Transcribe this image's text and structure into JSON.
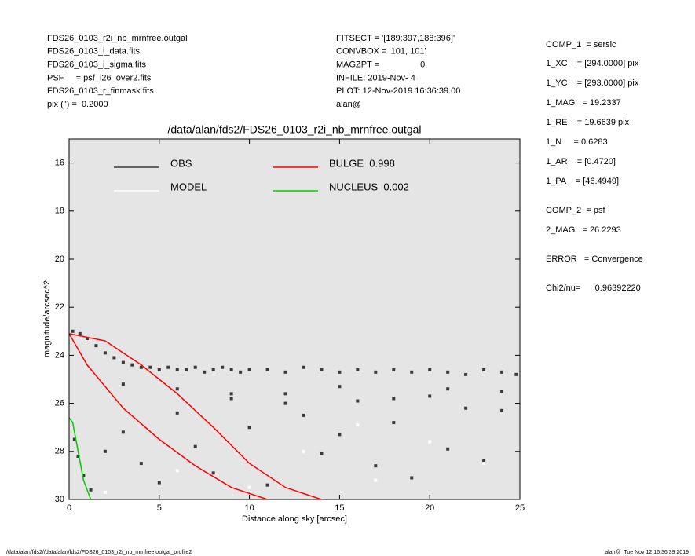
{
  "header": {
    "left": [
      "FDS26_0103_r2i_nb_mrnfree.outgal",
      "FDS26_0103_i_data.fits",
      "FDS26_0103_i_sigma.fits",
      "PSF     = psf_i26_over2.fits",
      "FDS26_0103_r_finmask.fits",
      "pix (\") =  0.2000"
    ],
    "middle": [
      "FITSECT = '[189:397,188:396]'",
      "CONVBOX = '101, 101'",
      "MAGZPT =                 0.",
      "INFILE: 2019-Nov- 4",
      "PLOT: 12-Nov-2019 16:36:39.00",
      "alan@"
    ],
    "right": [
      "COMP_1  = sersic",
      "1_XC    = [294.0000] pix",
      "1_YC    = [293.0000] pix",
      "1_MAG   = 19.2337",
      "1_RE    = 19.6639 pix",
      "1_N     = 0.6283",
      "1_AR    = [0.4720]",
      "1_PA    = [46.4949]",
      "COMP_2  = psf",
      "2_MAG   = 26.2293",
      "ERROR   = Convergence",
      "Chi2/nu=      0.96392220"
    ]
  },
  "footer": {
    "left": "/data/alan/fds2//data/alan/fds2/FDS26_0103_r2i_nb_mrnfree.outgal_profile2",
    "right": "alan@  Tue Nov 12 16:36:39 2019"
  },
  "chart_data": {
    "type": "scatter",
    "title": "/data/alan/fds2/FDS26_0103_r2i_nb_mrnfree.outgal",
    "x_label": "Distance along sky [arcsec]",
    "y_label": "magnitude/arcsec^2",
    "xlim": [
      0,
      25
    ],
    "ylim": [
      30,
      15
    ],
    "xticks": [
      0,
      5,
      10,
      15,
      20,
      25
    ],
    "yticks": [
      16,
      18,
      20,
      22,
      24,
      26,
      28,
      30
    ],
    "series": [
      {
        "name": "OBS",
        "color": "#3a3a3a",
        "mode": "markers",
        "x": [
          0.2,
          0.6,
          1.0,
          1.5,
          2.0,
          2.5,
          3.0,
          3.5,
          4.0,
          4.5,
          5,
          5.5,
          6,
          6.5,
          7,
          7.5,
          8,
          8.5,
          9,
          9.5,
          10,
          11,
          12,
          13,
          14,
          15,
          16,
          17,
          18,
          19,
          20,
          21,
          22,
          23,
          24,
          24.8,
          0.3,
          0.5,
          0.8,
          1.2,
          2,
          3,
          4,
          5,
          6,
          7,
          8,
          9,
          10,
          11,
          12,
          13,
          14,
          15,
          16,
          17,
          18,
          19,
          20,
          21,
          22,
          23,
          24,
          3,
          6,
          9,
          12,
          15,
          18,
          21,
          24
        ],
        "values": [
          23.0,
          23.1,
          23.3,
          23.6,
          23.9,
          24.1,
          24.3,
          24.4,
          24.5,
          24.5,
          24.6,
          24.5,
          24.6,
          24.6,
          24.5,
          24.7,
          24.6,
          24.5,
          24.6,
          24.7,
          24.6,
          24.6,
          24.7,
          24.5,
          24.6,
          24.7,
          24.6,
          24.7,
          24.6,
          24.7,
          24.6,
          24.7,
          24.8,
          24.6,
          24.7,
          24.8,
          27.5,
          28.2,
          29.0,
          29.6,
          28.0,
          27.2,
          28.5,
          29.3,
          26.4,
          27.8,
          28.9,
          25.8,
          27.0,
          29.4,
          25.6,
          26.5,
          28.1,
          27.3,
          25.9,
          28.6,
          26.8,
          29.1,
          25.7,
          27.9,
          26.2,
          28.4,
          25.5,
          25.2,
          25.4,
          25.6,
          26.0,
          25.3,
          25.8,
          25.4,
          26.3
        ]
      },
      {
        "name": "MODEL",
        "color": "#ffffff",
        "mode": "markers",
        "x": [
          6,
          10,
          13,
          17,
          20,
          23,
          2,
          16
        ],
        "values": [
          28.8,
          29.5,
          28.0,
          29.2,
          27.6,
          28.5,
          29.7,
          26.9
        ]
      },
      {
        "name": "BULGE  0.998",
        "color": "#ff0000",
        "mode": "lines",
        "x": [
          0,
          2,
          4,
          6,
          8,
          10,
          12,
          14,
          11,
          9,
          7,
          5,
          3,
          1,
          0
        ],
        "values": [
          23.1,
          23.4,
          24.4,
          25.6,
          27.0,
          28.5,
          29.5,
          30,
          30,
          29.5,
          28.6,
          27.5,
          26.2,
          24.4,
          23.1
        ]
      },
      {
        "name": "NUCLEUS  0.002",
        "color": "#00cc00",
        "mode": "lines",
        "x": [
          0,
          0.2,
          0.5,
          0.8,
          1.2
        ],
        "values": [
          26.6,
          26.8,
          28.0,
          29.2,
          30
        ]
      }
    ]
  }
}
